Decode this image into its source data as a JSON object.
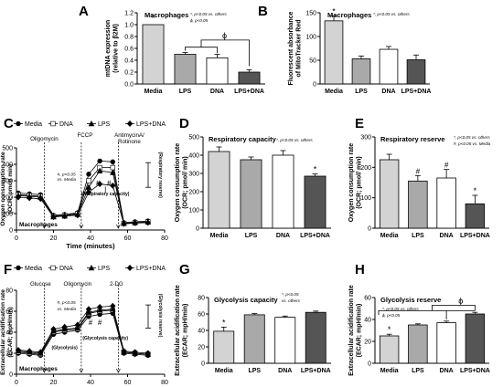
{
  "chart_data": [
    {
      "panel": "A",
      "type": "bar",
      "title": "Macrophages",
      "ylabel_lines": [
        "mtDNA expression",
        "(relative to β2M)"
      ],
      "legend_lines": [
        "*, p<0.05 vs. others",
        "ϕ, p<0.05"
      ],
      "categories": [
        "Media",
        "LPS",
        "DNA",
        "LPS+DNA"
      ],
      "values": [
        1.0,
        0.5,
        0.44,
        0.2
      ],
      "errors": [
        0.0,
        0.03,
        0.06,
        0.04
      ],
      "ylim": [
        0,
        1.2
      ],
      "yticks": [
        "0.0",
        "0.2",
        "0.4",
        "0.6",
        "0.8",
        "1.0",
        "1.2"
      ],
      "annotations": [
        "*",
        "ϕ"
      ]
    },
    {
      "panel": "B",
      "type": "bar",
      "title": "Macrophages",
      "ylabel_lines": [
        "Fluorescent absorbance",
        "of MitoTracker Red"
      ],
      "legend_lines": [
        "*, p<0.05 vs. others"
      ],
      "categories": [
        "Media",
        "LPS",
        "DNA",
        "LPS+DNA"
      ],
      "values": [
        133,
        53,
        73,
        51
      ],
      "errors": [
        10,
        6,
        6,
        10
      ],
      "ylim": [
        0,
        150
      ],
      "yticks": [
        "0",
        "50",
        "100",
        "150"
      ],
      "annotations": [
        "*"
      ]
    },
    {
      "panel": "C",
      "type": "line",
      "legend": [
        "Media",
        "DNA",
        "LPS",
        "LPS+DNA"
      ],
      "xlabel": "Time (minutes)",
      "ylabel_lines": [
        "Oxygen consumption rate",
        "(OCR; pmol/ min)"
      ],
      "inner_label": "Macrophages",
      "injections": [
        "Oligomycin",
        "FCCP",
        "AntimycinA/ Rotinone"
      ],
      "notes": [
        "#, p<0.05",
        "vs. Media",
        "(Respiratory capacity)",
        "(Respiratory reserve)"
      ],
      "x": [
        1,
        7,
        13,
        20,
        26,
        33,
        39,
        45,
        52,
        58,
        64,
        71
      ],
      "series": [
        {
          "name": "Media",
          "values": [
            225,
            220,
            215,
            90,
            95,
            105,
            340,
            420,
            415,
            45,
            50,
            55
          ]
        },
        {
          "name": "DNA",
          "values": [
            215,
            210,
            205,
            85,
            90,
            100,
            300,
            380,
            380,
            40,
            45,
            50
          ]
        },
        {
          "name": "LPS",
          "values": [
            210,
            205,
            200,
            80,
            85,
            95,
            260,
            360,
            350,
            40,
            45,
            48
          ]
        },
        {
          "name": "LPS+DNA",
          "values": [
            200,
            195,
            190,
            80,
            85,
            90,
            230,
            280,
            270,
            38,
            42,
            45
          ]
        }
      ],
      "xlim": [
        0,
        80
      ],
      "ylim": [
        0,
        500
      ],
      "xticks": [
        "0",
        "20",
        "40",
        "60",
        "80"
      ],
      "yticks": [
        "0",
        "100",
        "200",
        "300",
        "400",
        "500"
      ]
    },
    {
      "panel": "D",
      "type": "bar",
      "title": "Respiratory capacity",
      "ylabel_lines": [
        "Oxygen consumption rate",
        "(OCR; pmol/ min)"
      ],
      "legend_lines": [
        "*, p<0.05 vs. others"
      ],
      "categories": [
        "Media",
        "LPS",
        "DNA",
        "LPS+DNA"
      ],
      "values": [
        420,
        375,
        400,
        285
      ],
      "errors": [
        25,
        15,
        25,
        12
      ],
      "ylim": [
        0,
        500
      ],
      "yticks": [
        "0",
        "100",
        "200",
        "300",
        "400",
        "500"
      ],
      "annotations": [
        "*"
      ]
    },
    {
      "panel": "E",
      "type": "bar",
      "title": "Respiratory reserve",
      "ylabel_lines": [
        "Oxygen consumption rate",
        "(OCR; pmol/ min)"
      ],
      "legend_lines": [
        "*, p<0.05 vs. others",
        "#, p<0.05 vs. Media"
      ],
      "categories": [
        "Media",
        "LPS",
        "DNA",
        "LPS+DNA"
      ],
      "values": [
        225,
        155,
        165,
        80
      ],
      "errors": [
        18,
        18,
        28,
        28
      ],
      "ylim": [
        0,
        300
      ],
      "yticks": [
        "0",
        "100",
        "200",
        "300"
      ],
      "annotations": [
        "#",
        "#",
        "*"
      ]
    },
    {
      "panel": "F",
      "type": "line",
      "legend": [
        "Media",
        "DNA",
        "LPS",
        "LPS+DNA"
      ],
      "xlabel": "Time (minutes)",
      "ylabel_lines": [
        "Extracellular acidification rate",
        "(ECAR; mpH/min)"
      ],
      "inner_label": "Macrophages",
      "injections": [
        "Glucose",
        "Oligomycin",
        "2-DG"
      ],
      "notes": [
        "#, p<0.05",
        "vs. Media",
        "(Glycolysis)",
        "(Glycolysis capacity)",
        "(Glycolysis reserve)"
      ],
      "x": [
        1,
        7,
        13,
        20,
        26,
        33,
        39,
        45,
        52,
        58,
        64,
        71
      ],
      "series": [
        {
          "name": "Media",
          "values": [
            20,
            19,
            18,
            38,
            40,
            42,
            55,
            57,
            58,
            20,
            19,
            18
          ]
        },
        {
          "name": "DNA",
          "values": [
            21,
            20,
            19,
            40,
            42,
            43,
            58,
            60,
            61,
            21,
            20,
            19
          ]
        },
        {
          "name": "LPS",
          "values": [
            22,
            21,
            20,
            41,
            43,
            44,
            59,
            61,
            62,
            21,
            20,
            19
          ]
        },
        {
          "name": "LPS+DNA",
          "values": [
            23,
            22,
            21,
            43,
            45,
            47,
            62,
            64,
            65,
            22,
            21,
            20
          ]
        }
      ],
      "xlim": [
        0,
        80
      ],
      "ylim": [
        0,
        80
      ],
      "xticks": [
        "0",
        "20",
        "40",
        "60",
        "80"
      ],
      "yticks": [
        "0",
        "20",
        "40",
        "60",
        "80"
      ]
    },
    {
      "panel": "G",
      "type": "bar",
      "title": "Glycolysis capacity",
      "ylabel_lines": [
        "Extracellular acidification rate",
        "(ECAR; mpH/min)"
      ],
      "legend_lines": [
        "*, p<0.05",
        "vs. others"
      ],
      "categories": [
        "Media",
        "LPS",
        "DNA",
        "LPS+DNA"
      ],
      "values": [
        39,
        59,
        56,
        62
      ],
      "errors": [
        5,
        1.5,
        1.5,
        1.5
      ],
      "ylim": [
        0,
        80
      ],
      "yticks": [
        "0",
        "20",
        "40",
        "60",
        "80"
      ],
      "annotations": [
        "*"
      ]
    },
    {
      "panel": "H",
      "type": "bar",
      "title": "Glycolysis reserve",
      "ylabel_lines": [
        "Extracellular acidification rate",
        "(ECAR; mpH/min)"
      ],
      "legend_lines": [
        "*, p<0.05 vs. others",
        "ϕ, p<0.05"
      ],
      "categories": [
        "Media",
        "LPS",
        "DNA",
        "LPS+DNA"
      ],
      "values": [
        25,
        35,
        37,
        45
      ],
      "errors": [
        1.5,
        1,
        1.5,
        1.5
      ],
      "ylim": [
        0,
        60
      ],
      "yticks": [
        "0",
        "20",
        "40",
        "60"
      ],
      "annotations": [
        "*",
        "ϕ"
      ]
    }
  ],
  "colors": {
    "Media": "#d3d3d3",
    "LPS": "#a9a9a9",
    "DNA": "#ffffff",
    "LPS+DNA": "#555555",
    "axis": "#000000"
  }
}
